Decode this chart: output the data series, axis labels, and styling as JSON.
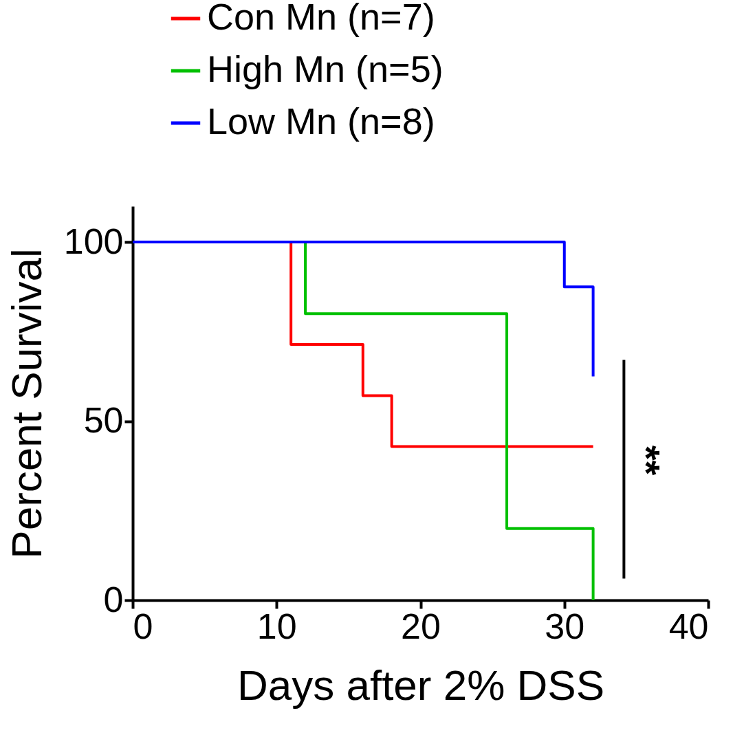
{
  "chart_data": {
    "type": "step",
    "xlabel": "Days after 2% DSS",
    "ylabel": "Percent Survival",
    "xlim": [
      0,
      40
    ],
    "xticks": [
      0,
      10,
      20,
      30,
      40
    ],
    "ylim": [
      0,
      110
    ],
    "yticks": [
      0,
      50,
      100
    ],
    "grid": false,
    "legend": "top",
    "series": [
      {
        "name": "Con Mn (n=7)",
        "color": "#ff0000",
        "x": [
          0,
          11,
          16,
          18,
          32
        ],
        "values": [
          100,
          71.4,
          57.1,
          42.9,
          42.9
        ]
      },
      {
        "name": "High Mn (n=5)",
        "color": "#00c000",
        "x": [
          0,
          12,
          26,
          32
        ],
        "values": [
          100,
          80,
          20,
          0
        ]
      },
      {
        "name": "Low Mn (n=8)",
        "color": "#0000ff",
        "x": [
          0,
          30,
          32
        ],
        "values": [
          100,
          87.5,
          62.5
        ]
      }
    ],
    "annotations": [
      "**"
    ]
  }
}
